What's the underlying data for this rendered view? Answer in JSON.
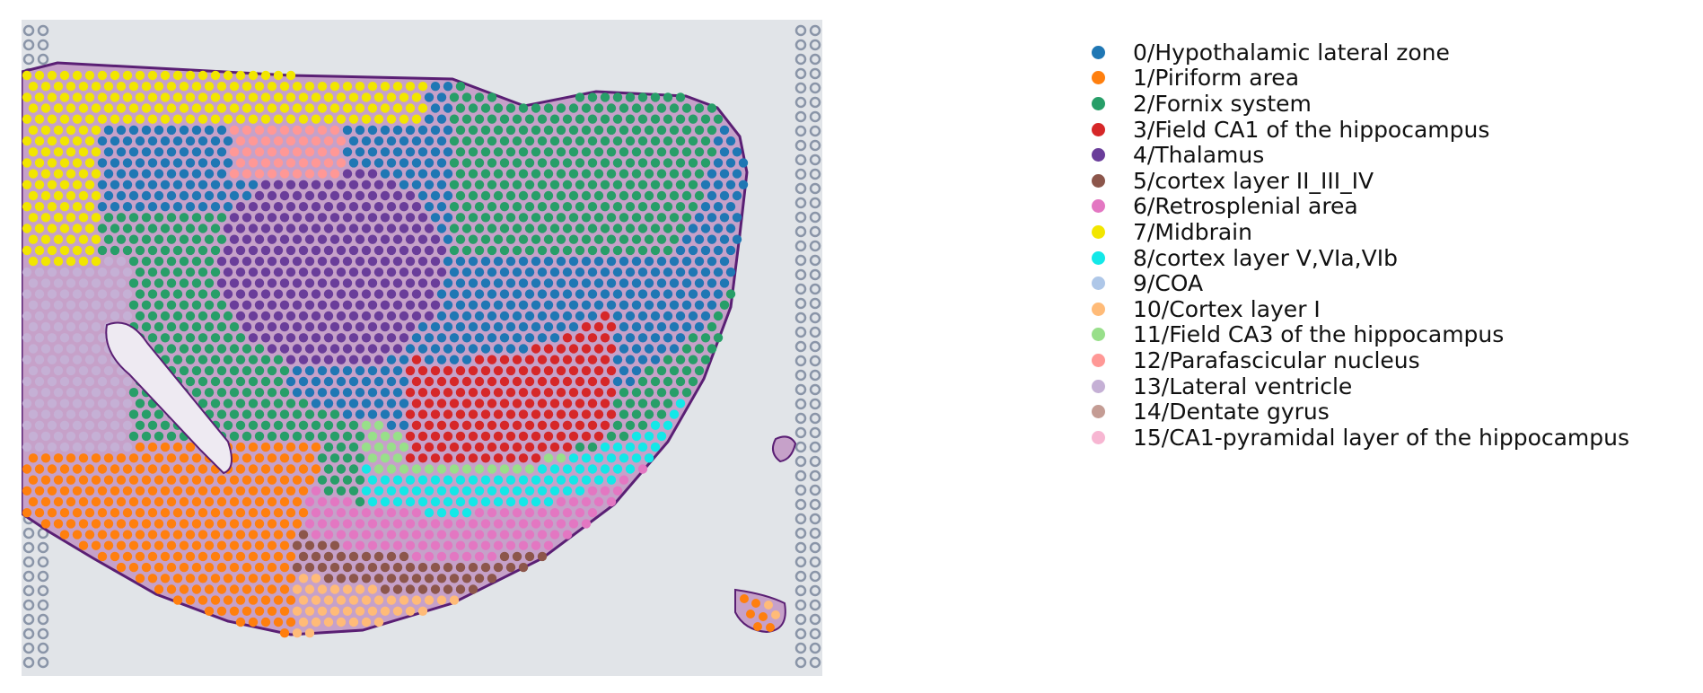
{
  "legend": {
    "items": [
      {
        "label": "0/Hypothalamic lateral zone",
        "color": "#1f77b4"
      },
      {
        "label": "1/Piriform area",
        "color": "#ff7f0e"
      },
      {
        "label": "2/Fornix system",
        "color": "#279e68"
      },
      {
        "label": "3/Field CA1 of the hippocampus",
        "color": "#d62728"
      },
      {
        "label": "4/Thalamus",
        "color": "#6a3d9a"
      },
      {
        "label": "5/cortex layer II_III_IV",
        "color": "#8c564b"
      },
      {
        "label": "6/Retrosplenial area",
        "color": "#e377c2"
      },
      {
        "label": "7/Midbrain",
        "color": "#f2e600"
      },
      {
        "label": "8/cortex layer V,VIa,VIb",
        "color": "#13e8e8"
      },
      {
        "label": "9/COA",
        "color": "#aec7e8"
      },
      {
        "label": "10/Cortex layer I",
        "color": "#ffbb78"
      },
      {
        "label": "11/Field CA3 of the hippocampus",
        "color": "#98df8a"
      },
      {
        "label": "12/Parafascicular nucleus",
        "color": "#ff9896"
      },
      {
        "label": "13/Lateral ventricle",
        "color": "#c5b0d5"
      },
      {
        "label": "14/Dentate gyrus",
        "color": "#c49c94"
      },
      {
        "label": "15/CA1-pyramidal layer of the hippocampus",
        "color": "#f7b6d2"
      }
    ]
  },
  "image": {
    "background_color": "#e1e4e8",
    "fiducial_color": "#8a95a8",
    "tissue_stain_color": "#6b2c86"
  }
}
